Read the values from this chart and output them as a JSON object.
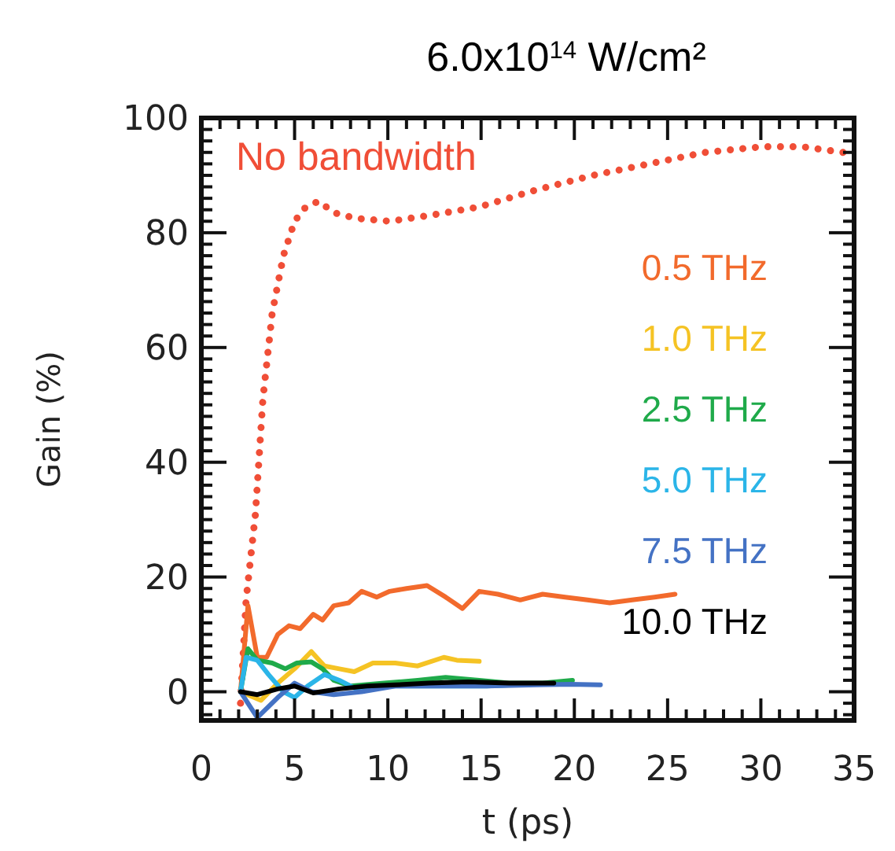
{
  "chart_data": {
    "type": "line",
    "title": "6.0x10$^{14}$ W/cm²",
    "xlabel": "t  (ps)",
    "ylabel": "Gain  (%)",
    "xlim": [
      0,
      35
    ],
    "ylim": [
      -5,
      100
    ],
    "xticks": [
      0,
      {
        "value": 1,
        "label": null
      },
      {
        "value": 2,
        "label": null
      },
      {
        "value": 3,
        "label": null
      },
      {
        "value": 4,
        "label": null
      },
      5,
      {
        "value": 6,
        "label": null
      },
      {
        "value": 7,
        "label": null
      },
      {
        "value": 8,
        "label": null
      },
      {
        "value": 9,
        "label": null
      },
      10,
      {
        "value": 11,
        "label": null
      },
      {
        "value": 12,
        "label": null
      },
      {
        "value": 13,
        "label": null
      },
      {
        "value": 14,
        "label": null
      },
      15,
      {
        "value": 16,
        "label": null
      },
      {
        "value": 17,
        "label": null
      },
      {
        "value": 18,
        "label": null
      },
      {
        "value": 19,
        "label": null
      },
      20,
      {
        "value": 21,
        "label": null
      },
      {
        "value": 22,
        "label": null
      },
      {
        "value": 23,
        "label": null
      },
      {
        "value": 24,
        "label": null
      },
      25,
      {
        "value": 26,
        "label": null
      },
      {
        "value": 27,
        "label": null
      },
      {
        "value": 28,
        "label": null
      },
      {
        "value": 29,
        "label": null
      },
      30,
      {
        "value": 31,
        "label": null
      },
      {
        "value": 32,
        "label": null
      },
      {
        "value": 33,
        "label": null
      },
      {
        "value": 34,
        "label": null
      },
      35
    ],
    "yticks": [
      {
        "value": -4,
        "label": null
      },
      {
        "value": -2,
        "label": null
      },
      0,
      {
        "value": 2,
        "label": null
      },
      {
        "value": 4,
        "label": null
      },
      {
        "value": 6,
        "label": null
      },
      {
        "value": 8,
        "label": null
      },
      {
        "value": 10,
        "label": null
      },
      {
        "value": 12,
        "label": null
      },
      {
        "value": 14,
        "label": null
      },
      {
        "value": 16,
        "label": null
      },
      {
        "value": 18,
        "label": null
      },
      20,
      {
        "value": 22,
        "label": null
      },
      {
        "value": 24,
        "label": null
      },
      {
        "value": 26,
        "label": null
      },
      {
        "value": 28,
        "label": null
      },
      {
        "value": 30,
        "label": null
      },
      {
        "value": 32,
        "label": null
      },
      {
        "value": 34,
        "label": null
      },
      {
        "value": 36,
        "label": null
      },
      {
        "value": 38,
        "label": null
      },
      40,
      {
        "value": 42,
        "label": null
      },
      {
        "value": 44,
        "label": null
      },
      {
        "value": 46,
        "label": null
      },
      {
        "value": 48,
        "label": null
      },
      {
        "value": 50,
        "label": null
      },
      {
        "value": 52,
        "label": null
      },
      {
        "value": 54,
        "label": null
      },
      {
        "value": 56,
        "label": null
      },
      {
        "value": 58,
        "label": null
      },
      60,
      {
        "value": 62,
        "label": null
      },
      {
        "value": 64,
        "label": null
      },
      {
        "value": 66,
        "label": null
      },
      {
        "value": 68,
        "label": null
      },
      {
        "value": 70,
        "label": null
      },
      {
        "value": 72,
        "label": null
      },
      {
        "value": 74,
        "label": null
      },
      {
        "value": 76,
        "label": null
      },
      {
        "value": 78,
        "label": null
      },
      80,
      {
        "value": 82,
        "label": null
      },
      {
        "value": 84,
        "label": null
      },
      {
        "value": 86,
        "label": null
      },
      {
        "value": 88,
        "label": null
      },
      {
        "value": 90,
        "label": null
      },
      {
        "value": 92,
        "label": null
      },
      {
        "value": 94,
        "label": null
      },
      {
        "value": 96,
        "label": null
      },
      {
        "value": 98,
        "label": null
      },
      100
    ],
    "grid": false,
    "legend": "right",
    "marker": "none",
    "series": [
      {
        "name": "No bandwidth",
        "color": "#f04e37",
        "line_style": "dotted",
        "x": [
          2.1,
          2.4,
          2.9,
          3.3,
          3.8,
          4.4,
          5.0,
          5.6,
          6.3,
          7.1,
          8.3,
          10.1,
          12.2,
          14.9,
          18.0,
          21.0,
          24.0,
          27.0,
          30.1,
          32.2,
          34.4
        ],
        "values": [
          -2,
          16,
          31,
          51,
          66,
          76,
          82,
          84.5,
          85.5,
          83.5,
          82.5,
          82,
          83,
          84.5,
          87.5,
          90,
          92,
          94,
          95,
          95,
          94
        ]
      },
      {
        "name": "0.5 THz",
        "color": "#f26a2c",
        "x": [
          2.1,
          2.5,
          3.0,
          3.5,
          4.1,
          4.7,
          5.3,
          6.0,
          6.5,
          7.1,
          7.9,
          8.6,
          9.4,
          10.1,
          11.0,
          12.1,
          13.1,
          14.0,
          14.9,
          15.9,
          17.1,
          18.3,
          19.5,
          20.7,
          21.9,
          23.1,
          24.3,
          25.4
        ],
        "values": [
          0,
          15,
          6,
          6,
          10,
          11.5,
          11,
          13.5,
          12.5,
          15,
          15.5,
          17.5,
          16.5,
          17.5,
          18,
          18.5,
          16.5,
          14.5,
          17.5,
          17,
          16,
          17,
          16.5,
          16,
          15.5,
          16,
          16.5,
          17
        ]
      },
      {
        "name": "1.0 THz",
        "color": "#f5c324",
        "x": [
          2.1,
          3.2,
          4.1,
          5.0,
          5.9,
          6.6,
          7.4,
          8.2,
          9.2,
          10.4,
          11.6,
          13.0,
          13.7,
          14.9
        ],
        "values": [
          0,
          -1.5,
          1.5,
          4,
          7,
          4.5,
          4,
          3.5,
          5,
          5,
          4.5,
          6,
          5.5,
          5.3
        ]
      },
      {
        "name": "2.5 THz",
        "color": "#1faa4a",
        "x": [
          2.1,
          2.5,
          3.0,
          3.8,
          4.5,
          5.1,
          5.9,
          6.5,
          7.1,
          8.0,
          9.8,
          11.6,
          13.1,
          14.9,
          16.5,
          18.3,
          19.9
        ],
        "values": [
          0,
          7.5,
          5.5,
          5,
          4,
          5,
          5.2,
          4,
          2,
          1,
          1.5,
          2,
          2.5,
          2,
          1.5,
          1.5,
          2
        ]
      },
      {
        "name": "5.0 THz",
        "color": "#2bb5e8",
        "x": [
          2.1,
          2.4,
          3.0,
          3.6,
          4.4,
          5.0,
          5.7,
          6.6,
          7.4,
          8.3,
          9.8,
          11.6,
          13.4,
          15.3,
          17.4
        ],
        "values": [
          0,
          6,
          5.5,
          3,
          0,
          -1,
          1,
          3,
          2,
          0.5,
          1,
          1,
          1,
          1,
          1.3
        ]
      },
      {
        "name": "7.5 THz",
        "color": "#4472c4",
        "x": [
          2.1,
          3.0,
          4.1,
          5.0,
          5.9,
          7.1,
          8.6,
          10.4,
          12.8,
          15.3,
          18.0,
          19.8,
          21.4
        ],
        "values": [
          0,
          -4.5,
          -1,
          1.5,
          0,
          -0.5,
          0,
          1,
          1,
          1,
          1.2,
          1.3,
          1.2
        ]
      },
      {
        "name": "10.0 THz",
        "color": "#000000",
        "x": [
          2.1,
          3.0,
          4.1,
          5.0,
          6.0,
          7.4,
          8.9,
          10.4,
          12.2,
          14.3,
          16.5,
          18.9
        ],
        "values": [
          0,
          -0.5,
          0.5,
          1,
          -0.2,
          0.5,
          1,
          1.2,
          1.5,
          1.7,
          1.5,
          1.5
        ]
      }
    ]
  }
}
